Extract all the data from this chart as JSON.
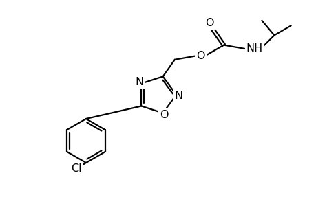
{
  "background_color": "#ffffff",
  "line_color": "#000000",
  "line_width": 1.6,
  "font_size": 11.5,
  "figsize": [
    4.6,
    3.0
  ],
  "dpi": 100,
  "xlim": [
    0,
    460
  ],
  "ylim": [
    0,
    300
  ]
}
